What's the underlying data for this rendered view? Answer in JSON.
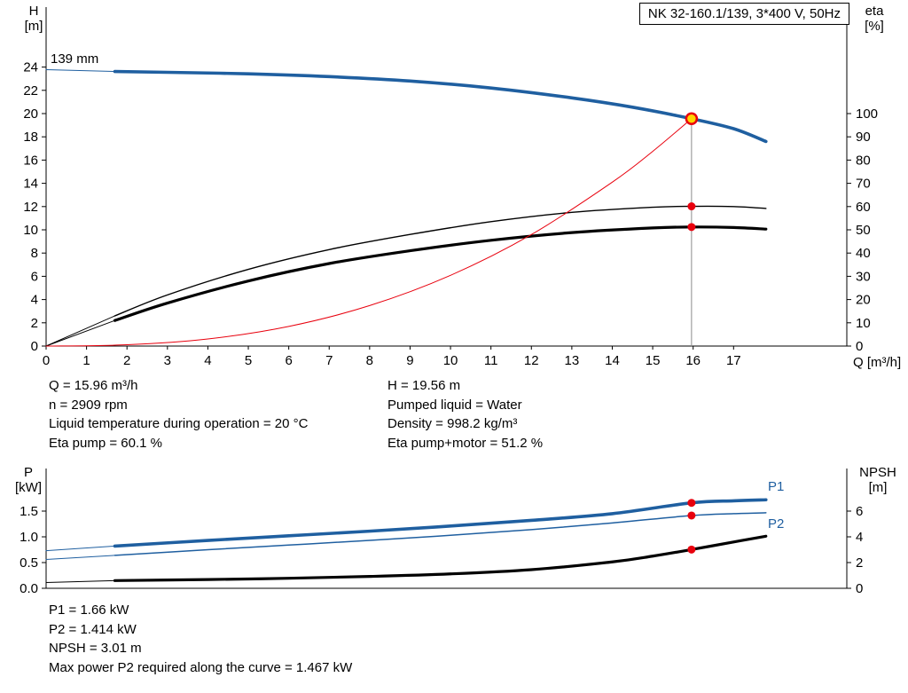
{
  "header": {
    "title": "NK 32-160.1/139, 3*400 V, 50Hz"
  },
  "axes_labels": {
    "h": "H",
    "h_unit": "[m]",
    "eta": "eta",
    "eta_unit": "[%]",
    "q_unit": "Q [m³/h]",
    "p": "P",
    "p_unit": "[kW]",
    "npsh": "NPSH",
    "npsh_unit": "[m]"
  },
  "curve_labels": {
    "impeller": "139 mm",
    "p1": "P1",
    "p2": "P2"
  },
  "results_top": {
    "left": [
      "Q = 15.96 m³/h",
      "n = 2909 rpm",
      "Liquid temperature during operation = 20 °C",
      "Eta pump = 60.1 %"
    ],
    "right": [
      "H = 19.56 m",
      "Pumped liquid = Water",
      "Density = 998.2 kg/m³",
      "Eta pump+motor = 51.2 %"
    ]
  },
  "results_bottom": [
    "P1 = 1.66 kW",
    "P2 = 1.414 kW",
    "NPSH = 3.01 m",
    "Max power P2 required along the curve = 1.467 kW"
  ],
  "colors": {
    "curve_blue": "#1f5fa0",
    "curve_black": "#000000",
    "duty_red": "#e8000d",
    "duty_fill": "#ffd500",
    "grid_gray": "#8c8c8c"
  },
  "chart_data": [
    {
      "type": "line",
      "title": "QH and efficiency curves, NK 32-160.1/139",
      "x_axis": {
        "label": "Q [m³/h]",
        "ticks": [
          0,
          1,
          2,
          3,
          4,
          5,
          6,
          7,
          8,
          9,
          10,
          11,
          12,
          13,
          14,
          15,
          16,
          17
        ],
        "range": [
          0,
          19.8
        ]
      },
      "left_axis": {
        "label": "H [m]",
        "ticks": [
          0,
          2,
          4,
          6,
          8,
          10,
          12,
          14,
          16,
          18,
          20,
          22,
          24
        ],
        "range": [
          0,
          24
        ]
      },
      "right_axis": {
        "label": "eta [%]",
        "ticks": [
          0,
          10,
          20,
          30,
          40,
          50,
          60,
          70,
          80,
          90,
          100
        ],
        "range": [
          0,
          100
        ]
      },
      "series": [
        {
          "name": "eta-pump-lead",
          "axis": "right",
          "color": "curve_black",
          "width": 1,
          "points": [
            [
              0,
              0
            ],
            [
              1.7,
              13
            ]
          ]
        },
        {
          "name": "eta-pump-motor-lead",
          "axis": "right",
          "color": "curve_black",
          "width": 1,
          "points": [
            [
              0,
              0
            ],
            [
              1.7,
              11
            ]
          ]
        },
        {
          "name": "eta-pump",
          "axis": "right",
          "color": "curve_black",
          "width": 1.4,
          "points": [
            [
              1.7,
              13
            ],
            [
              3,
              22
            ],
            [
              5,
              33
            ],
            [
              7,
              41.5
            ],
            [
              9,
              48
            ],
            [
              11,
              53.5
            ],
            [
              13,
              57.5
            ],
            [
              15,
              59.7
            ],
            [
              15.96,
              60.1
            ],
            [
              17,
              60
            ],
            [
              17.8,
              59.2
            ]
          ]
        },
        {
          "name": "eta-pump-motor",
          "axis": "right",
          "color": "curve_black",
          "width": 3.2,
          "points": [
            [
              1.7,
              11
            ],
            [
              3,
              18.5
            ],
            [
              5,
              28
            ],
            [
              7,
              35.5
            ],
            [
              9,
              41
            ],
            [
              11,
              45.5
            ],
            [
              13,
              48.8
            ],
            [
              15,
              50.8
            ],
            [
              15.96,
              51.2
            ],
            [
              17,
              51
            ],
            [
              17.8,
              50.3
            ]
          ]
        },
        {
          "name": "duty-system-curve",
          "axis": "left",
          "color": "duty_red",
          "width": 1,
          "points": [
            [
              0,
              0
            ],
            [
              2,
              0.11
            ],
            [
              4,
              0.61
            ],
            [
              6,
              1.69
            ],
            [
              8,
              3.48
            ],
            [
              10,
              6.08
            ],
            [
              12,
              9.59
            ],
            [
              14,
              14.1
            ],
            [
              15,
              16.75
            ],
            [
              15.96,
              19.56
            ]
          ]
        },
        {
          "name": "qh-lead",
          "axis": "left",
          "color": "curve_blue",
          "width": 1,
          "points": [
            [
              0,
              23.78
            ],
            [
              1.7,
              23.62
            ]
          ]
        },
        {
          "name": "qh-139mm",
          "axis": "left",
          "color": "curve_blue",
          "width": 3.6,
          "points": [
            [
              1.7,
              23.62
            ],
            [
              3,
              23.55
            ],
            [
              5,
              23.42
            ],
            [
              7,
              23.18
            ],
            [
              9,
              22.8
            ],
            [
              11,
              22.2
            ],
            [
              13,
              21.35
            ],
            [
              14.5,
              20.55
            ],
            [
              15.96,
              19.56
            ],
            [
              17,
              18.7
            ],
            [
              17.8,
              17.6
            ]
          ]
        }
      ],
      "duty_line": {
        "x": 15.96,
        "from": 19.56
      },
      "markers": [
        {
          "name": "duty-point-qh",
          "x": 15.96,
          "axis": "left",
          "y": 19.56,
          "style": "duty"
        },
        {
          "name": "duty-point-eta-pump",
          "x": 15.96,
          "axis": "right",
          "y": 60.1,
          "style": "dot"
        },
        {
          "name": "duty-point-eta-pump-motor",
          "x": 15.96,
          "axis": "right",
          "y": 51.2,
          "style": "dot"
        }
      ]
    },
    {
      "type": "line",
      "title": "Power and NPSH curves",
      "x_axis": {
        "label": "",
        "ticks": [],
        "range": [
          0,
          19.8
        ]
      },
      "left_axis": {
        "label": "P [kW]",
        "ticks": [
          0,
          0.5,
          1,
          1.5
        ],
        "tick_labels": [
          "0.0",
          "0.5",
          "1.0",
          "1.5"
        ],
        "range": [
          0,
          1.5
        ]
      },
      "right_axis": {
        "label": "NPSH [m]",
        "ticks": [
          0,
          2,
          4,
          6
        ],
        "range": [
          0,
          6
        ]
      },
      "series": [
        {
          "name": "npsh-lead",
          "axis": "right",
          "color": "curve_black",
          "width": 1,
          "points": [
            [
              0,
              0.45
            ],
            [
              1.7,
              0.6
            ]
          ]
        },
        {
          "name": "npsh",
          "axis": "right",
          "color": "curve_black",
          "width": 3.2,
          "points": [
            [
              1.7,
              0.6
            ],
            [
              4,
              0.68
            ],
            [
              6,
              0.78
            ],
            [
              8,
              0.92
            ],
            [
              10,
              1.12
            ],
            [
              12,
              1.45
            ],
            [
              14,
              2.05
            ],
            [
              15,
              2.5
            ],
            [
              15.96,
              3.01
            ],
            [
              17,
              3.6
            ],
            [
              17.8,
              4.05
            ]
          ]
        },
        {
          "name": "p2-lead",
          "axis": "left",
          "color": "curve_blue",
          "width": 1,
          "points": [
            [
              0,
              0.56
            ],
            [
              1.7,
              0.64
            ]
          ]
        },
        {
          "name": "p2",
          "axis": "left",
          "color": "curve_blue",
          "width": 1.5,
          "points": [
            [
              1.7,
              0.64
            ],
            [
              4,
              0.75
            ],
            [
              6,
              0.84
            ],
            [
              8,
              0.93
            ],
            [
              10,
              1.03
            ],
            [
              12,
              1.14
            ],
            [
              14,
              1.27
            ],
            [
              15.96,
              1.414
            ],
            [
              17,
              1.45
            ],
            [
              17.8,
              1.467
            ]
          ]
        },
        {
          "name": "p1-lead",
          "axis": "left",
          "color": "curve_blue",
          "width": 1,
          "points": [
            [
              0,
              0.73
            ],
            [
              1.7,
              0.82
            ]
          ]
        },
        {
          "name": "p1",
          "axis": "left",
          "color": "curve_blue",
          "width": 3.6,
          "points": [
            [
              1.7,
              0.82
            ],
            [
              4,
              0.93
            ],
            [
              6,
              1.02
            ],
            [
              8,
              1.11
            ],
            [
              10,
              1.21
            ],
            [
              12,
              1.32
            ],
            [
              14,
              1.45
            ],
            [
              15.96,
              1.66
            ],
            [
              17,
              1.7
            ],
            [
              17.8,
              1.72
            ]
          ]
        }
      ],
      "markers": [
        {
          "name": "duty-point-p1",
          "x": 15.96,
          "axis": "left",
          "y": 1.66,
          "style": "dot"
        },
        {
          "name": "duty-point-p2",
          "x": 15.96,
          "axis": "left",
          "y": 1.414,
          "style": "dot"
        },
        {
          "name": "duty-point-npsh",
          "x": 15.96,
          "axis": "right",
          "y": 3.01,
          "style": "dot"
        }
      ]
    }
  ]
}
